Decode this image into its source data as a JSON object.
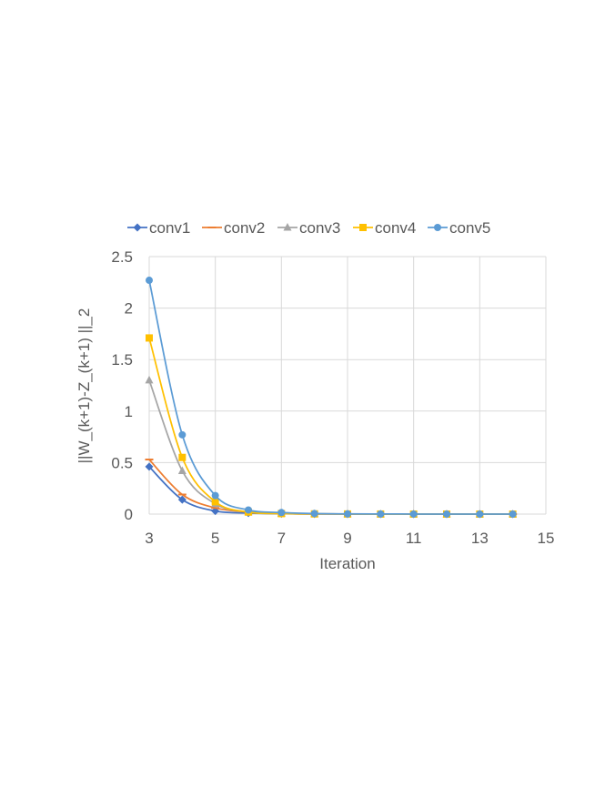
{
  "chart_data": {
    "type": "line",
    "title": "",
    "xlabel": "Iteration",
    "ylabel": "||W_(k+1)-Z_(k+1) ||_2",
    "xlim": [
      3,
      15
    ],
    "ylim": [
      0,
      2.5
    ],
    "xticks": [
      "3",
      "5",
      "7",
      "9",
      "11",
      "13",
      "15"
    ],
    "yticks": [
      "0",
      "0.5",
      "1",
      "1.5",
      "2",
      "2.5"
    ],
    "grid": true,
    "legend_position": "top",
    "x": [
      3,
      4,
      5,
      6,
      7,
      8,
      9,
      10,
      11,
      12,
      13,
      14
    ],
    "series": [
      {
        "name": "conv1",
        "color": "#4472C4",
        "marker": "diamond",
        "values": [
          0.46,
          0.14,
          0.03,
          0.01,
          0.003,
          0.001,
          0.0005,
          0.0002,
          0.0001,
          0.0,
          0.0,
          0.0
        ]
      },
      {
        "name": "conv2",
        "color": "#ED7D31",
        "marker": "dash",
        "values": [
          0.53,
          0.19,
          0.06,
          0.02,
          0.006,
          0.002,
          0.001,
          0.0005,
          0.0002,
          0.0001,
          0.0,
          0.0
        ]
      },
      {
        "name": "conv3",
        "color": "#A5A5A5",
        "marker": "triangle",
        "values": [
          1.3,
          0.42,
          0.1,
          0.02,
          0.006,
          0.002,
          0.001,
          0.0005,
          0.0002,
          0.0001,
          0.0,
          0.0
        ]
      },
      {
        "name": "conv4",
        "color": "#FFC000",
        "marker": "square",
        "values": [
          1.71,
          0.55,
          0.12,
          0.02,
          0.005,
          0.002,
          0.001,
          0.0005,
          0.0002,
          0.0001,
          0.0,
          0.0
        ]
      },
      {
        "name": "conv5",
        "color": "#5B9BD5",
        "marker": "circle",
        "values": [
          2.27,
          0.77,
          0.18,
          0.04,
          0.015,
          0.005,
          0.002,
          0.001,
          0.0005,
          0.0002,
          0.0001,
          0.0
        ]
      }
    ]
  }
}
